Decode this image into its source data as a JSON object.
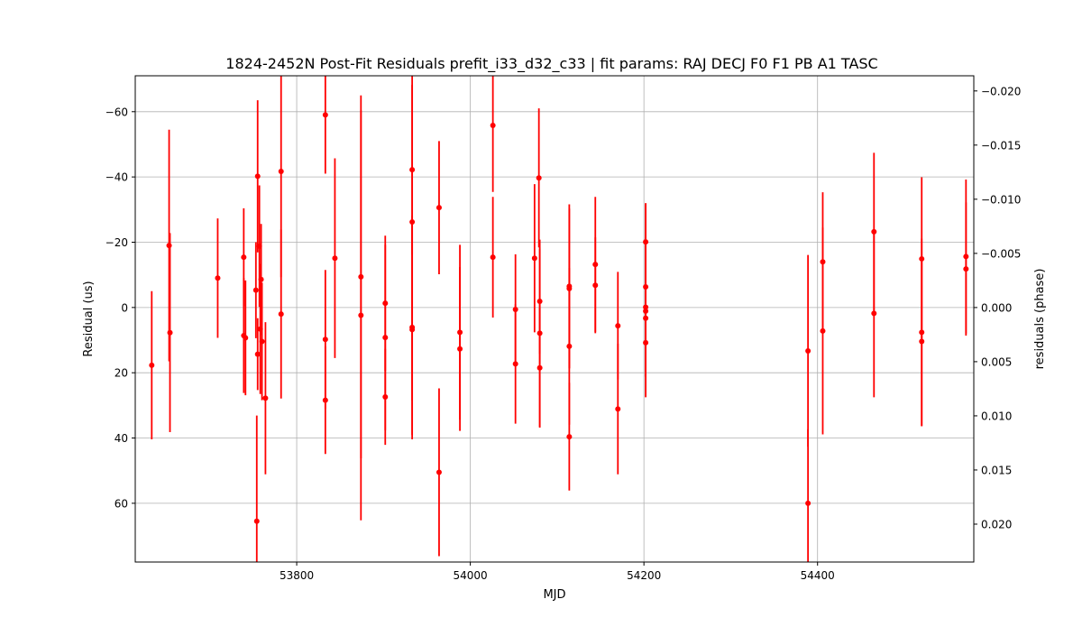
{
  "chart_data": {
    "type": "scatter",
    "title": "1824-2452N Post-Fit Residuals prefit_i33_d32_c33 | fit params: RAJ DECJ F0 F1 PB A1 TASC",
    "xlabel": "MJD",
    "ylabel": "Residual (us)",
    "y2label": "residuals (phase)",
    "xlim": [
      53614,
      54580
    ],
    "ylim_inverted": [
      78,
      -71
    ],
    "y2lim_inverted": [
      0.0235,
      -0.0214
    ],
    "grid": true,
    "xticks": [
      53800,
      54000,
      54200,
      54400
    ],
    "yticks": [
      -60,
      -40,
      -20,
      0,
      20,
      40,
      60
    ],
    "y2ticks": [
      -0.02,
      -0.015,
      -0.01,
      -0.005,
      0.0,
      0.005,
      0.01,
      0.015,
      0.02
    ],
    "xtick_labels": [
      "53800",
      "54000",
      "54200",
      "54400"
    ],
    "ytick_labels": [
      "−60",
      "−40",
      "−20",
      "0",
      "20",
      "40",
      "60"
    ],
    "y2tick_labels": [
      "−0.020",
      "−0.015",
      "−0.010",
      "−0.005",
      "0.000",
      "0.005",
      "0.010",
      "0.015",
      "0.020"
    ],
    "color": "#ff0000",
    "points": [
      {
        "x": 53633,
        "y": 17.7,
        "err": 22.7
      },
      {
        "x": 53653,
        "y": -19.0,
        "err": 35.5
      },
      {
        "x": 53654,
        "y": 7.7,
        "err": 30.5
      },
      {
        "x": 53709,
        "y": -9.0,
        "err": 18.3
      },
      {
        "x": 53739,
        "y": -15.4,
        "err": 15.0
      },
      {
        "x": 53739,
        "y": 8.6,
        "err": 17.6
      },
      {
        "x": 53741,
        "y": 9.3,
        "err": 17.6
      },
      {
        "x": 53753,
        "y": -5.3,
        "err": 14.7
      },
      {
        "x": 53754,
        "y": 65.5,
        "err": 32.4
      },
      {
        "x": 53755,
        "y": -40.2,
        "err": 23.3
      },
      {
        "x": 53755,
        "y": 14.3,
        "err": 11.0
      },
      {
        "x": 53757,
        "y": -18.8,
        "err": 18.6
      },
      {
        "x": 53758,
        "y": 6.6,
        "err": 19.9
      },
      {
        "x": 53759,
        "y": -8.6,
        "err": 17.0
      },
      {
        "x": 53760,
        "y": 10.4,
        "err": 18.0
      },
      {
        "x": 53764,
        "y": 27.8,
        "err": 23.3
      },
      {
        "x": 53782,
        "y": -41.7,
        "err": 32.4
      },
      {
        "x": 53782,
        "y": 2.0,
        "err": 25.9
      },
      {
        "x": 53833,
        "y": -59.0,
        "err": 18.0
      },
      {
        "x": 53833,
        "y": 9.8,
        "err": 21.3
      },
      {
        "x": 53833,
        "y": 28.4,
        "err": 16.5
      },
      {
        "x": 53844,
        "y": -15.1,
        "err": 30.6
      },
      {
        "x": 53874,
        "y": -9.4,
        "err": 55.6
      },
      {
        "x": 53874,
        "y": 2.4,
        "err": 62.8
      },
      {
        "x": 53902,
        "y": -1.3,
        "err": 20.7
      },
      {
        "x": 53902,
        "y": 9.2,
        "err": 28.4
      },
      {
        "x": 53902,
        "y": 27.4,
        "err": 14.7
      },
      {
        "x": 53933,
        "y": -42.2,
        "err": 26.0
      },
      {
        "x": 53933,
        "y": -26.2,
        "err": 54.7
      },
      {
        "x": 53933,
        "y": 6.1,
        "err": 34.3
      },
      {
        "x": 53933,
        "y": 6.8,
        "err": 32.3
      },
      {
        "x": 53964,
        "y": -30.6,
        "err": 20.4
      },
      {
        "x": 53964,
        "y": 50.5,
        "err": 25.7
      },
      {
        "x": 53988,
        "y": 7.6,
        "err": 26.8
      },
      {
        "x": 53988,
        "y": 12.7,
        "err": 25.1
      },
      {
        "x": 54026,
        "y": -55.8,
        "err": 20.4
      },
      {
        "x": 54026,
        "y": -15.4,
        "err": 18.5
      },
      {
        "x": 54052,
        "y": 0.6,
        "err": 16.9
      },
      {
        "x": 54052,
        "y": 17.3,
        "err": 18.3
      },
      {
        "x": 54074,
        "y": -15.1,
        "err": 22.7
      },
      {
        "x": 54079,
        "y": -39.7,
        "err": 21.3
      },
      {
        "x": 54080,
        "y": -1.9,
        "err": 16.1
      },
      {
        "x": 54080,
        "y": 7.9,
        "err": 28.7
      },
      {
        "x": 54080,
        "y": 18.5,
        "err": 18.3
      },
      {
        "x": 54114,
        "y": -6.5,
        "err": 25.1
      },
      {
        "x": 54114,
        "y": -5.8,
        "err": 24.5
      },
      {
        "x": 54114,
        "y": 11.9,
        "err": 24.0
      },
      {
        "x": 54114,
        "y": 39.6,
        "err": 16.5
      },
      {
        "x": 54144,
        "y": -13.2,
        "err": 20.7
      },
      {
        "x": 54144,
        "y": -6.8,
        "err": 14.7
      },
      {
        "x": 54170,
        "y": 5.6,
        "err": 16.5
      },
      {
        "x": 54170,
        "y": 31.1,
        "err": 20.0
      },
      {
        "x": 54202,
        "y": -20.1,
        "err": 11.5
      },
      {
        "x": 54202,
        "y": -6.3,
        "err": 25.7
      },
      {
        "x": 54202,
        "y": -0.1,
        "err": 21.3
      },
      {
        "x": 54202,
        "y": 1.1,
        "err": 20.0
      },
      {
        "x": 54202,
        "y": 3.3,
        "err": 24.2
      },
      {
        "x": 54202,
        "y": 10.8,
        "err": 10.4
      },
      {
        "x": 54389,
        "y": 13.3,
        "err": 29.4
      },
      {
        "x": 54389,
        "y": 60.0,
        "err": 22.7
      },
      {
        "x": 54406,
        "y": -14.0,
        "err": 21.3
      },
      {
        "x": 54406,
        "y": 7.2,
        "err": 31.7
      },
      {
        "x": 54465,
        "y": -23.2,
        "err": 24.2
      },
      {
        "x": 54465,
        "y": 1.8,
        "err": 25.7
      },
      {
        "x": 54520,
        "y": -14.9,
        "err": 25.0
      },
      {
        "x": 54520,
        "y": 7.6,
        "err": 28.7
      },
      {
        "x": 54520,
        "y": 10.4,
        "err": 26.0
      },
      {
        "x": 54571,
        "y": -15.6,
        "err": 23.6
      },
      {
        "x": 54571,
        "y": -11.8,
        "err": 20.4
      }
    ]
  }
}
